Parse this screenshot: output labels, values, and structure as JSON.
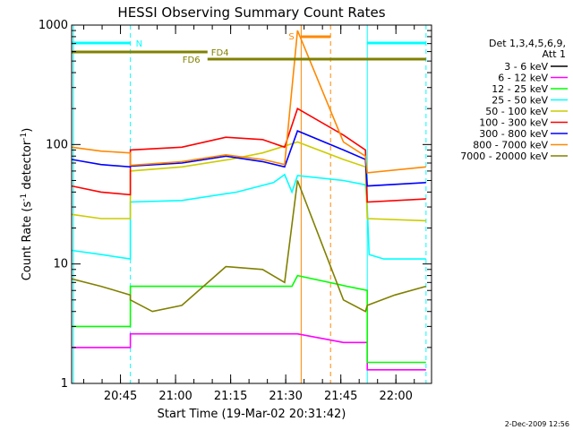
{
  "chart_data": {
    "type": "line",
    "title": "HESSI Observing Summary Count Rates",
    "xlabel": "Start Time (19-Mar-02 20:31:42)",
    "ylabel": "Count Rate (s⁻¹ detector⁻¹)",
    "ylabel_parts": {
      "main": "Count Rate (s",
      "sup1": "-1",
      "mid": " detector",
      "sup2": "-1",
      "end": ")"
    },
    "yscale": "log",
    "ylim": [
      1,
      1000
    ],
    "xlim_minutes": [
      0,
      98
    ],
    "x_ticks": [
      {
        "m": 13.3,
        "label": "20:45"
      },
      {
        "m": 28.3,
        "label": "21:00"
      },
      {
        "m": 43.3,
        "label": "21:15"
      },
      {
        "m": 58.3,
        "label": "21:30"
      },
      {
        "m": 73.3,
        "label": "21:45"
      },
      {
        "m": 88.3,
        "label": "22:00"
      }
    ],
    "y_ticks": [
      {
        "v": 1,
        "label": "1"
      },
      {
        "v": 10,
        "label": "10"
      },
      {
        "v": 100,
        "label": "100"
      },
      {
        "v": 1000,
        "label": "1000"
      }
    ],
    "legend_title": [
      "Det 1,3,4,5,6,9,",
      "Att 1"
    ],
    "legend": [
      {
        "label": "3 - 6 keV",
        "color": "#000000"
      },
      {
        "label": "6 - 12 keV",
        "color": "#ff00ff"
      },
      {
        "label": "12 - 25 keV",
        "color": "#00ff00"
      },
      {
        "label": "25 - 50 keV",
        "color": "#00ffff"
      },
      {
        "label": "50 - 100 keV",
        "color": "#cccc00"
      },
      {
        "label": "100 - 300 keV",
        "color": "#ff0000"
      },
      {
        "label": "300 - 800 keV",
        "color": "#0000ff"
      },
      {
        "label": "800 - 7000 keV",
        "color": "#ff8800"
      },
      {
        "label": "7000 - 20000 keV",
        "color": "#808000"
      }
    ],
    "flags": [
      {
        "label": "N",
        "color": "#00ffff",
        "segments": [
          [
            0,
            16
          ],
          [
            80.5,
            96.5
          ]
        ]
      },
      {
        "label": "FD4",
        "color": "#808000",
        "segments": [
          [
            0,
            37
          ]
        ]
      },
      {
        "label": "FD6",
        "color": "#808000",
        "segments": [
          [
            37,
            96.5
          ]
        ]
      },
      {
        "label": "S",
        "color": "#ff8800",
        "segments": [
          [
            62.5,
            70.5
          ]
        ]
      }
    ],
    "markers": [
      {
        "m": 0.5,
        "color": "#00ffff",
        "style": "solid"
      },
      {
        "m": 16,
        "color": "#00ffff",
        "style": "dashed"
      },
      {
        "m": 62.5,
        "color": "#ff8800",
        "style": "solid"
      },
      {
        "m": 70.5,
        "color": "#ff8800",
        "style": "dashed"
      },
      {
        "m": 80.5,
        "color": "#00ffff",
        "style": "solid"
      },
      {
        "m": 96.5,
        "color": "#00ffff",
        "style": "dashed"
      }
    ],
    "series": [
      {
        "name": "3 - 6 keV",
        "color": "#000000",
        "points": []
      },
      {
        "name": "6 - 12 keV",
        "color": "#ff00ff",
        "points": [
          [
            0,
            2.0
          ],
          [
            16,
            2.0
          ],
          [
            16,
            2.6
          ],
          [
            40,
            2.6
          ],
          [
            55,
            2.6
          ],
          [
            61.5,
            2.6
          ],
          [
            74,
            2.2
          ],
          [
            80.5,
            2.2
          ],
          [
            80.5,
            1.3
          ],
          [
            96.5,
            1.3
          ]
        ]
      },
      {
        "name": "12 - 25 keV",
        "color": "#00ff00",
        "points": [
          [
            0,
            3.0
          ],
          [
            16,
            3.0
          ],
          [
            16,
            6.5
          ],
          [
            35,
            6.5
          ],
          [
            50,
            6.5
          ],
          [
            60,
            6.5
          ],
          [
            61.5,
            8
          ],
          [
            75,
            6.5
          ],
          [
            80.5,
            6
          ],
          [
            80.5,
            1.5
          ],
          [
            96.5,
            1.5
          ]
        ]
      },
      {
        "name": "25 - 50 keV",
        "color": "#00ffff",
        "points": [
          [
            0,
            13
          ],
          [
            8,
            12
          ],
          [
            16,
            11
          ],
          [
            16,
            33
          ],
          [
            30,
            34
          ],
          [
            45,
            40
          ],
          [
            55,
            48
          ],
          [
            58,
            56
          ],
          [
            60,
            40
          ],
          [
            61.5,
            55
          ],
          [
            74,
            50
          ],
          [
            80,
            46
          ],
          [
            80.5,
            30
          ],
          [
            81,
            12
          ],
          [
            85,
            11
          ],
          [
            96.5,
            11
          ]
        ]
      },
      {
        "name": "50 - 100 keV",
        "color": "#cccc00",
        "points": [
          [
            0,
            26
          ],
          [
            8,
            24
          ],
          [
            16,
            24
          ],
          [
            16,
            60
          ],
          [
            30,
            65
          ],
          [
            43,
            75
          ],
          [
            52,
            85
          ],
          [
            57,
            95
          ],
          [
            61.5,
            105
          ],
          [
            74,
            75
          ],
          [
            80,
            65
          ],
          [
            80.5,
            24
          ],
          [
            96.5,
            23
          ]
        ]
      },
      {
        "name": "100 - 300 keV",
        "color": "#ff0000",
        "points": [
          [
            0,
            45
          ],
          [
            8,
            40
          ],
          [
            16,
            38
          ],
          [
            16,
            90
          ],
          [
            30,
            95
          ],
          [
            42,
            115
          ],
          [
            52,
            110
          ],
          [
            58,
            95
          ],
          [
            61.5,
            200
          ],
          [
            74,
            120
          ],
          [
            80,
            90
          ],
          [
            80.5,
            33
          ],
          [
            96.5,
            35
          ]
        ]
      },
      {
        "name": "300 - 800 keV",
        "color": "#0000ff",
        "points": [
          [
            0,
            75
          ],
          [
            8,
            68
          ],
          [
            16,
            65
          ],
          [
            16,
            66
          ],
          [
            30,
            70
          ],
          [
            42,
            80
          ],
          [
            52,
            72
          ],
          [
            58,
            65
          ],
          [
            61.5,
            130
          ],
          [
            74,
            90
          ],
          [
            80,
            75
          ],
          [
            80.5,
            45
          ],
          [
            96.5,
            48
          ]
        ]
      },
      {
        "name": "800 - 7000 keV",
        "color": "#ff8800",
        "points": [
          [
            0,
            95
          ],
          [
            8,
            88
          ],
          [
            16,
            85
          ],
          [
            16,
            67
          ],
          [
            30,
            72
          ],
          [
            42,
            82
          ],
          [
            52,
            75
          ],
          [
            58,
            68
          ],
          [
            61.5,
            900
          ],
          [
            74,
            105
          ],
          [
            80,
            80
          ],
          [
            80.5,
            58
          ],
          [
            96.5,
            65
          ]
        ]
      },
      {
        "name": "7000 - 20000 keV",
        "color": "#808000",
        "points": [
          [
            0,
            7.5
          ],
          [
            8,
            6.5
          ],
          [
            16,
            5.5
          ],
          [
            16,
            5
          ],
          [
            22,
            4
          ],
          [
            30,
            4.5
          ],
          [
            42,
            9.5
          ],
          [
            52,
            9
          ],
          [
            58,
            7
          ],
          [
            61.5,
            50
          ],
          [
            74,
            5
          ],
          [
            80,
            4
          ],
          [
            80.5,
            4.5
          ],
          [
            88,
            5.5
          ],
          [
            96.5,
            6.5
          ]
        ]
      }
    ]
  },
  "footer_date": "2-Dec-2009 12:56"
}
